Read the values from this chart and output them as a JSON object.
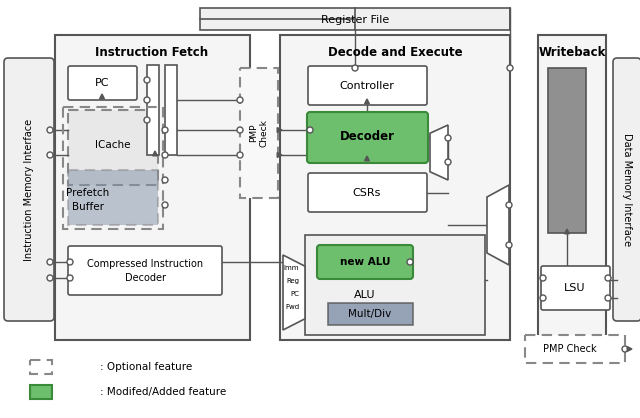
{
  "title": "",
  "bg_color": "#ffffff",
  "light_gray": "#e8e8e8",
  "mid_gray": "#a0a0a0",
  "dark_gray": "#707070",
  "green_fill": "#6dbf6d",
  "blue_gray_fill": "#8090a8",
  "box_edge": "#555555",
  "dashed_edge": "#888888",
  "register_file_label": "Register File",
  "instr_fetch_label": "Instruction Fetch",
  "decode_execute_label": "Decode and Execute",
  "writeback_label": "Writeback",
  "imem_label": "Instruction Memory Interface",
  "dmem_label": "Data Memory Interface",
  "legend_optional": ": Optional feature",
  "legend_modified": ": Modifed/Added feature"
}
